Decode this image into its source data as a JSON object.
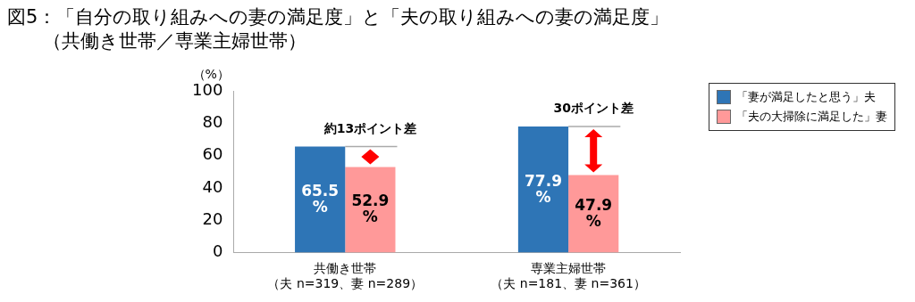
{
  "chart_data": {
    "type": "bar",
    "title": "図5：「自分の取り組みへの妻の満足度」と「夫の取り組みへの妻の満足度」",
    "subtitle": "（共働き世帯／専業主婦世帯）",
    "ylabel": "（%）",
    "categories": [
      "共働き世帯（夫 n=319、妻 n=289）",
      "専業主婦世帯（夫 n=181、妻 n=361）"
    ],
    "series": [
      {
        "name": "「妻が満足したと思う」夫",
        "color": "#2e75b6",
        "values": [
          65.5,
          77.9
        ],
        "value_labels": [
          "65.5%",
          "77.9%"
        ]
      },
      {
        "name": "「夫の大掃除に満足した」妻",
        "color": "#ff9999",
        "values": [
          52.9,
          47.9
        ],
        "value_labels": [
          "52.9%",
          "47.9%"
        ]
      }
    ],
    "ylim": [
      0,
      100
    ],
    "yticks": [
      0,
      20,
      40,
      60,
      80,
      100
    ],
    "grid": false,
    "legend": "top right",
    "annotations": [
      {
        "text": "約13ポイント差",
        "x": "共働き世帯（夫 n=319、妻 n=289）",
        "y": 65.5
      },
      {
        "text": "30ポイント差",
        "x": "専業主婦世帯（夫 n=181、妻 n=361）",
        "y": 77.9
      }
    ]
  }
}
